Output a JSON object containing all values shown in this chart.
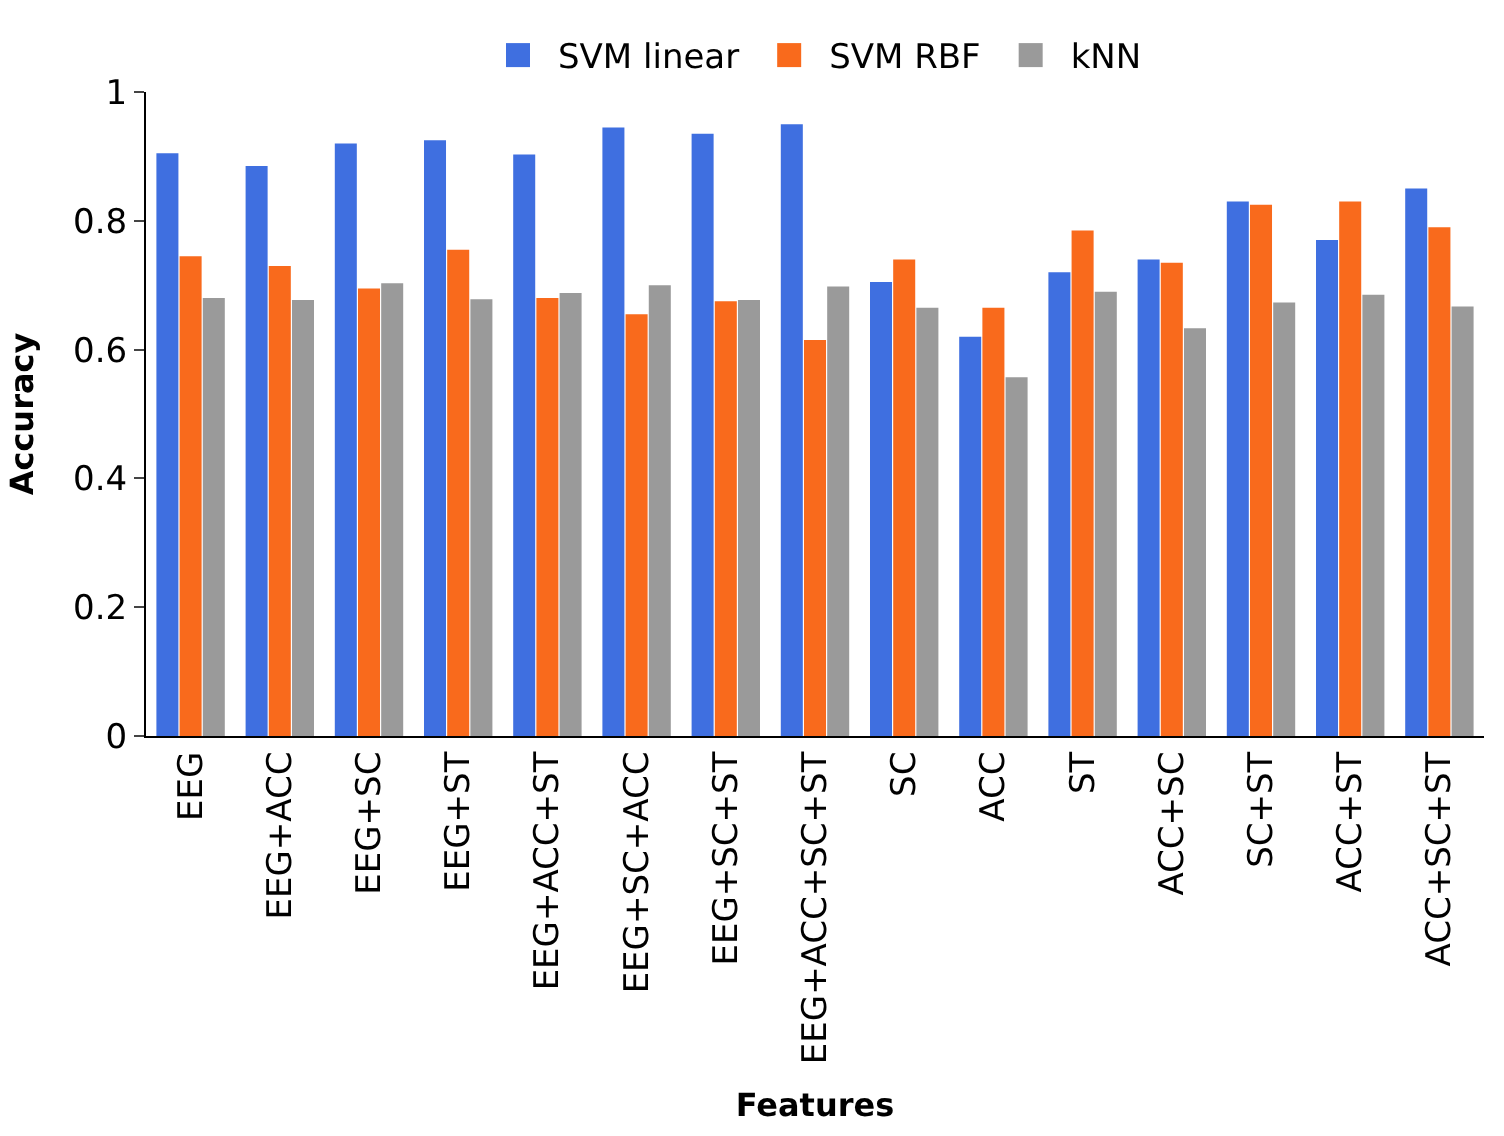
{
  "chart_data": {
    "type": "bar",
    "xlabel": "Features",
    "ylabel": "Accuracy",
    "categories": [
      "EEG",
      "EEG+ACC",
      "EEG+SC",
      "EEG+ST",
      "EEG+ACC+ST",
      "EEG+SC+ACC",
      "EEG+SC+ST",
      "EEG+ACC+SC+ST",
      "SC",
      "ACC",
      "ST",
      "ACC+SC",
      "SC+ST",
      "ACC+ST",
      "ACC+SC+ST"
    ],
    "series": [
      {
        "name": "SVM linear",
        "color": "#3f6fe0",
        "values": [
          0.905,
          0.885,
          0.92,
          0.925,
          0.903,
          0.945,
          0.935,
          0.95,
          0.705,
          0.62,
          0.72,
          0.74,
          0.83,
          0.77,
          0.85
        ]
      },
      {
        "name": "SVM RBF",
        "color": "#f96a1c",
        "values": [
          0.745,
          0.73,
          0.695,
          0.755,
          0.68,
          0.655,
          0.675,
          0.615,
          0.74,
          0.665,
          0.785,
          0.735,
          0.825,
          0.83,
          0.79
        ]
      },
      {
        "name": "kNN",
        "color": "#9a9a9a",
        "values": [
          0.68,
          0.677,
          0.703,
          0.678,
          0.688,
          0.7,
          0.677,
          0.698,
          0.665,
          0.557,
          0.69,
          0.633,
          0.673,
          0.685,
          0.667
        ]
      }
    ],
    "ylim": [
      0,
      1
    ],
    "yticks": [
      0,
      0.2,
      0.4,
      0.6,
      0.8,
      1
    ],
    "legend": "top"
  }
}
